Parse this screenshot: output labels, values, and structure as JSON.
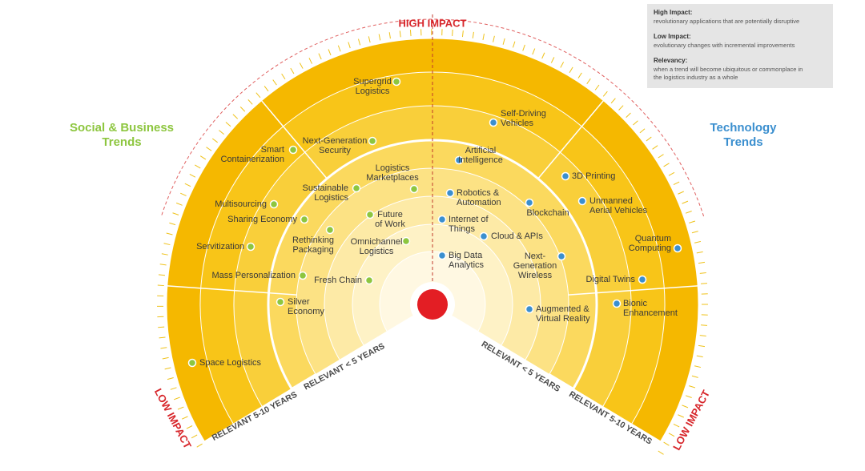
{
  "legend": {
    "items": [
      {
        "term": "High Impact:",
        "definition": [
          "revolutionary applications that are potentially disruptive"
        ]
      },
      {
        "term": "Low Impact:",
        "definition": [
          "evolutionary changes with incremental improvements"
        ]
      },
      {
        "term": "Relevancy:",
        "definition": [
          "when a trend will become ubiquitous or commonplace in",
          "the logistics industry as a whole"
        ]
      }
    ]
  },
  "axis_labels": {
    "high_impact": "HIGH IMPACT",
    "low_impact_left": "LOW IMPACT",
    "low_impact_right": "LOW IMPACT"
  },
  "sections": [
    {
      "title": [
        "Social & Business",
        "Trends"
      ],
      "ring_labels": [
        "RELEVANT < 5 YEARS",
        "RELEVANT 5-10 YEARS"
      ],
      "trends": [
        {
          "lines": [
            "Supergrid",
            "Logistics"
          ]
        },
        {
          "lines": [
            "Smart",
            "Containerization"
          ]
        },
        {
          "lines": [
            "Next-Generation",
            "Security"
          ]
        },
        {
          "lines": [
            "Logistics",
            "Marketplaces"
          ]
        },
        {
          "lines": [
            "Sustainable",
            "Logistics"
          ]
        },
        {
          "lines": [
            "Multisourcing"
          ]
        },
        {
          "lines": [
            "Sharing Economy"
          ]
        },
        {
          "lines": [
            "Future",
            "of Work"
          ]
        },
        {
          "lines": [
            "Rethinking",
            "Packaging"
          ]
        },
        {
          "lines": [
            "Servitization"
          ]
        },
        {
          "lines": [
            "Omnichannel",
            "Logistics"
          ]
        },
        {
          "lines": [
            "Mass Personalization"
          ]
        },
        {
          "lines": [
            "Fresh Chain"
          ]
        },
        {
          "lines": [
            "Silver",
            "Economy"
          ]
        },
        {
          "lines": [
            "Space Logistics"
          ]
        }
      ]
    },
    {
      "title": [
        "Technology",
        "Trends"
      ],
      "ring_labels": [
        "RELEVANT < 5 YEARS",
        "RELEVANT 5-10 YEARS"
      ],
      "trends": [
        {
          "lines": [
            "Self-Driving",
            "Vehicles"
          ]
        },
        {
          "lines": [
            "Artificial",
            "Intelligence"
          ]
        },
        {
          "lines": [
            "3D Printing"
          ]
        },
        {
          "lines": [
            "Robotics &",
            "Automation"
          ]
        },
        {
          "lines": [
            "Blockchain"
          ]
        },
        {
          "lines": [
            "Unmanned",
            "Aerial Vehicles"
          ]
        },
        {
          "lines": [
            "Internet of",
            "Things"
          ]
        },
        {
          "lines": [
            "Cloud & APIs"
          ]
        },
        {
          "lines": [
            "Quantum",
            "Computing"
          ]
        },
        {
          "lines": [
            "Big Data",
            "Analytics"
          ]
        },
        {
          "lines": [
            "Next-",
            "Generation",
            "Wireless"
          ]
        },
        {
          "lines": [
            "Digital Twins"
          ]
        },
        {
          "lines": [
            "Bionic",
            "Enhancement"
          ]
        },
        {
          "lines": [
            "Augmented &",
            "Virtual Reality"
          ]
        }
      ]
    }
  ]
}
